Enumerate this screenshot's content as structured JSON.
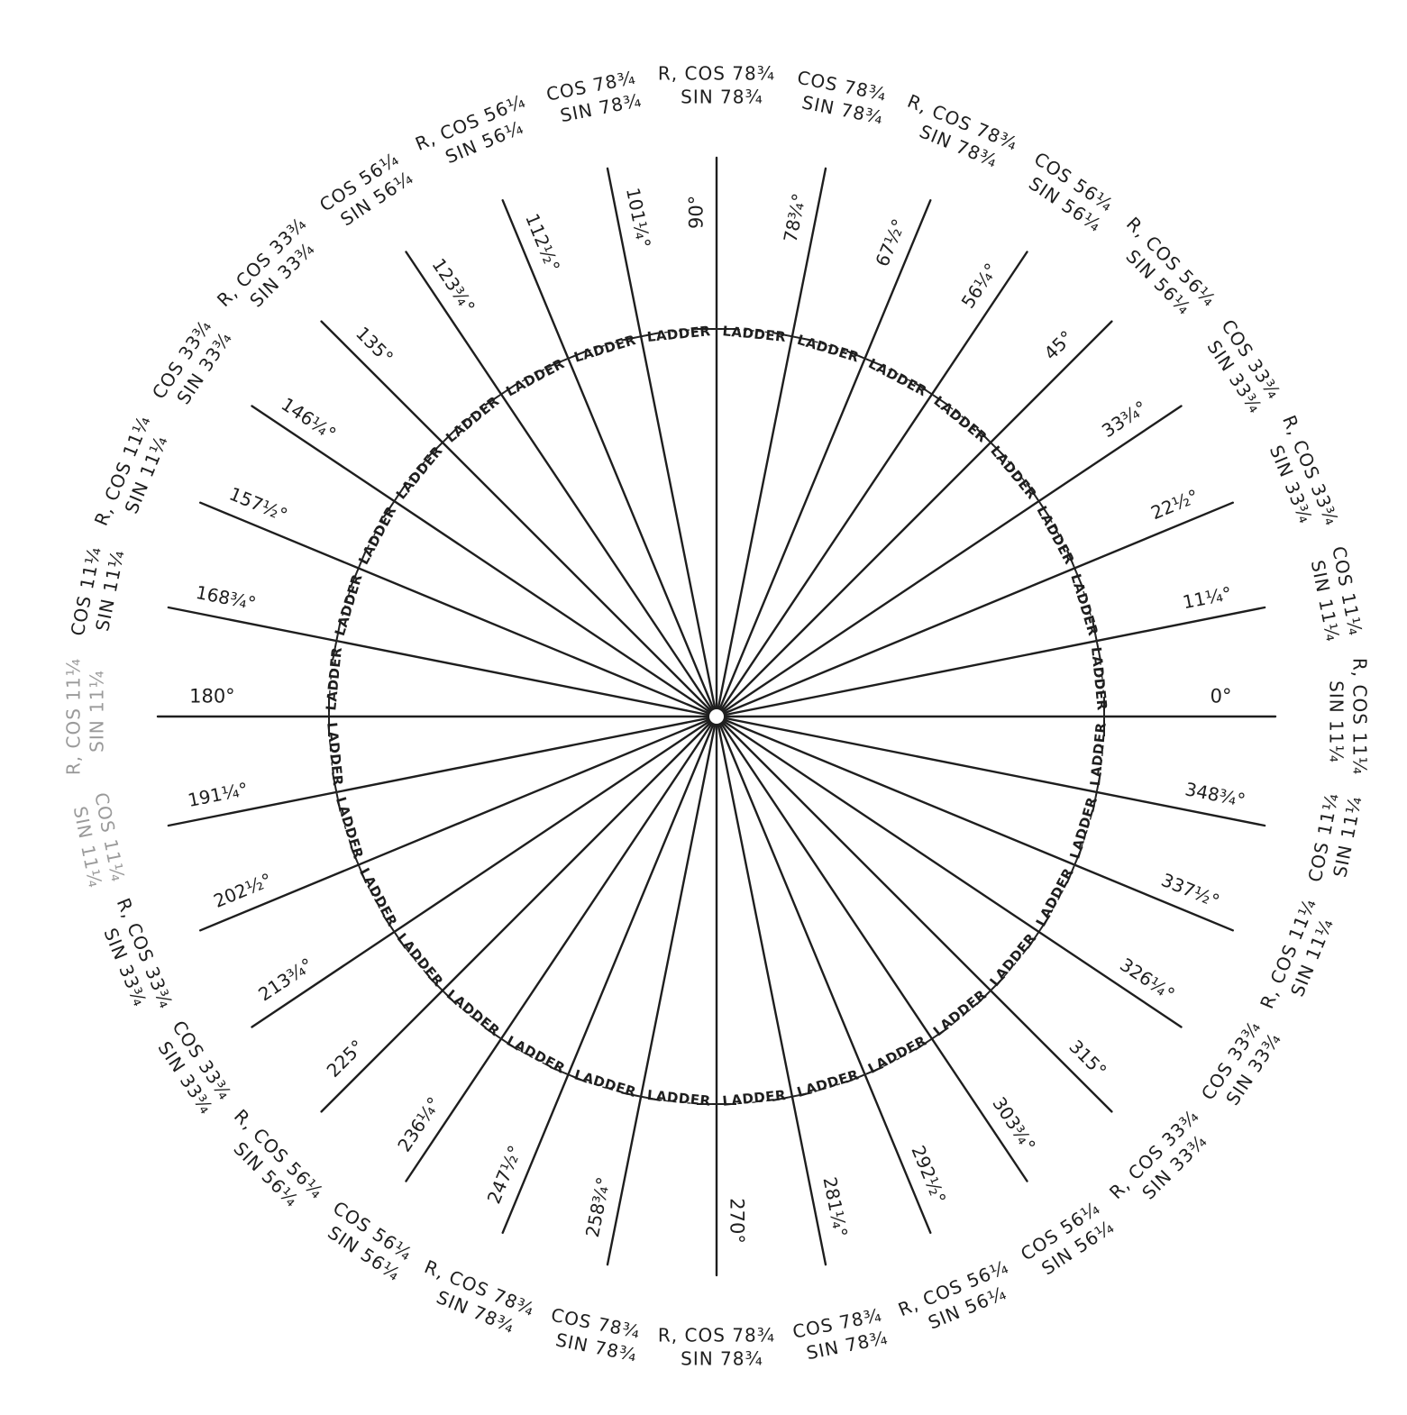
{
  "center_label": "",
  "rays": [
    {
      "angle": 0,
      "label": "0°",
      "func1": "R, COS 11¼",
      "func2": "SIN 11¼"
    },
    {
      "angle": 11.25,
      "label": "11¼°",
      "func1": "COS 11¼",
      "func2": "SIN 11¼"
    },
    {
      "angle": 22.5,
      "label": "22½°",
      "func1": "R, COS 33¾",
      "func2": "SIN 33¾"
    },
    {
      "angle": 33.75,
      "label": "33¾°",
      "func1": "COS 33¾",
      "func2": "SIN 33¾"
    },
    {
      "angle": 45,
      "label": "45°",
      "func1": "R, COS 56¼",
      "func2": "SIN 56¼"
    },
    {
      "angle": 56.25,
      "label": "56¼°",
      "func1": "COS 56¼",
      "func2": "SIN 56¼"
    },
    {
      "angle": 67.5,
      "label": "67½°",
      "func1": "R, COS 78¾",
      "func2": "SIN 78¾"
    },
    {
      "angle": 78.75,
      "label": "78¾°",
      "func1": "COS 78¾",
      "func2": "SIN 78¾"
    },
    {
      "angle": 90,
      "label": "90°",
      "func1": "R, COS 78¾",
      "func2": "SIN 78¾"
    },
    {
      "angle": 101.25,
      "label": "101¼°",
      "func1": "COS 78¾",
      "func2": "SIN 78¾"
    },
    {
      "angle": 112.5,
      "label": "112½°",
      "func1": "R, COS 56¼",
      "func2": "SIN 56¼"
    },
    {
      "angle": 123.75,
      "label": "123¾°",
      "func1": "COS 56¼",
      "func2": "SIN 56¼"
    },
    {
      "angle": 135,
      "label": "135°",
      "func1": "R, COS 33¾",
      "func2": "SIN 33¾"
    },
    {
      "angle": 146.25,
      "label": "146¼°",
      "func1": "COS 33¾",
      "func2": "SIN 33¾"
    },
    {
      "angle": 157.5,
      "label": "157½°",
      "func1": "R, COS 11¼",
      "func2": "SIN 11¼"
    },
    {
      "angle": 168.75,
      "label": "168¾°",
      "func1": "COS 11¼",
      "func2": "SIN 11¼"
    },
    {
      "angle": 180,
      "label": "180°",
      "func1": "R, COS 11¼",
      "func2": "SIN 11¼"
    },
    {
      "angle": 191.25,
      "label": "191¼°",
      "func1": "COS 11¼",
      "func2": "SIN 11¼"
    },
    {
      "angle": 202.5,
      "label": "202½°",
      "func1": "R, COS 33¾",
      "func2": "SIN 33¾"
    },
    {
      "angle": 213.75,
      "label": "213¾°",
      "func1": "COS 33¾",
      "func2": "SIN 33¾"
    },
    {
      "angle": 225,
      "label": "225°",
      "func1": "R, COS 56¼",
      "func2": "SIN 56¼"
    },
    {
      "angle": 236.25,
      "label": "236¼°",
      "func1": "COS 56¼",
      "func2": "SIN 56¼"
    },
    {
      "angle": 247.5,
      "label": "247½°",
      "func1": "R, COS 78¾",
      "func2": "SIN 78¾"
    },
    {
      "angle": 258.75,
      "label": "258¾°",
      "func1": "COS 78¾",
      "func2": "SIN 78¾"
    },
    {
      "angle": 270,
      "label": "270°",
      "func1": "R, COS 78¾",
      "func2": "SIN 78¾"
    },
    {
      "angle": 281.25,
      "label": "281¼°",
      "func1": "COS 78¾",
      "func2": "SIN 78¾"
    },
    {
      "angle": 292.5,
      "label": "292½°",
      "func1": "R, COS 56¼",
      "func2": "SIN 56¼"
    },
    {
      "angle": 303.75,
      "label": "303¾°",
      "func1": "COS 56¼",
      "func2": "SIN 56¼"
    },
    {
      "angle": 315,
      "label": "315°",
      "func1": "R, COS 33¾",
      "func2": "SIN 33¾"
    },
    {
      "angle": 326.25,
      "label": "326¼°",
      "func1": "COS 33¾",
      "func2": "SIN 33¾"
    },
    {
      "angle": 337.5,
      "label": "337½°",
      "func1": "R, COS 11¼",
      "func2": "SIN 11¼"
    },
    {
      "angle": 348.75,
      "label": "348¾°",
      "func1": "COS 11¼",
      "func2": "SIN 11¼"
    }
  ],
  "ladder_label": "LADDER",
  "colors": {
    "ink": "#1e1e1e",
    "faded": "#9a9a9a",
    "paper": "#ffffff"
  }
}
